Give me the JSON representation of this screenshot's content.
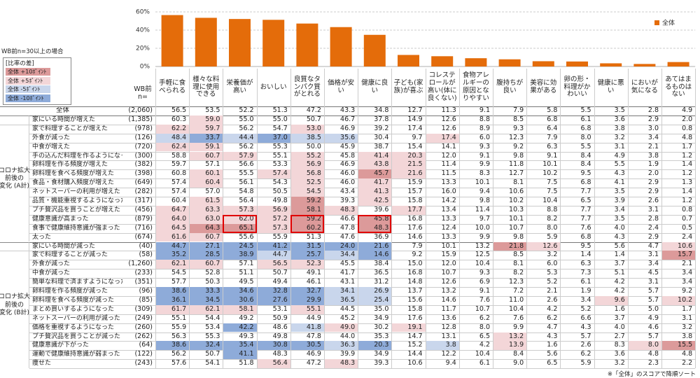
{
  "chart_data": {
    "type": "bar",
    "categories": [
      "手軽に食べられる",
      "様々な料理に使用できる",
      "栄養価が高い",
      "おいしい",
      "良質なタンパク質がとれる",
      "価格が安い",
      "健康に良い",
      "子ども(家族)が喜ぶ",
      "コレステロールが高い(体に良くない)",
      "食物アレルギーの原因となりやすい",
      "腹持ちが良い",
      "美容に効果がある",
      "卵の形・料理がかわいい",
      "健康に悪い",
      "においが気になる",
      "あてはまるものはない"
    ],
    "series": [
      {
        "name": "全体",
        "color": "#e46c0a",
        "values": [
          56.5,
          53.5,
          52.2,
          51.3,
          47.2,
          43.3,
          34.8,
          12.7,
          11.3,
          9.1,
          7.9,
          5.8,
          5.5,
          3.5,
          2.8,
          4.9
        ]
      }
    ],
    "ylim": [
      0,
      60
    ],
    "yticks": [
      {
        "value": 0,
        "label": "0%"
      },
      {
        "value": 20,
        "label": "20%"
      },
      {
        "value": 40,
        "label": "40%"
      },
      {
        "value": 60,
        "label": "60%"
      }
    ],
    "grid": true,
    "legend": "top-right"
  },
  "note": "WB前n=30以上の場合",
  "legend_box": {
    "title": "[比率の差]",
    "items": [
      {
        "label": "全体 +10ﾎﾟｲﾝﾄ",
        "color": "#dc9a9a"
      },
      {
        "label": "全体 +5ﾎﾟｲﾝﾄ",
        "color": "#f3d6d8"
      },
      {
        "label": "全体 -5ﾎﾟｲﾝﾄ",
        "color": "#c9d6ec"
      },
      {
        "label": "全体 -10ﾎﾟｲﾝﾄ",
        "color": "#8eabd9"
      }
    ]
  },
  "table": {
    "n_header": "WB前 n=",
    "total_n": "(2,060)",
    "groups": [
      {
        "label": "コロナ拡大 前後の 変化 (A計)",
        "rows": [
          {
            "label": "家にいる時間が増えた",
            "n": "(1,385)",
            "values": [
              "60.3",
              "59.0",
              "55.0",
              "55.0",
              "50.7",
              "46.7",
              "37.8",
              "14.9",
              "12.6",
              "8.8",
              "8.5",
              "6.8",
              "6.1",
              "3.6",
              "2.9",
              "2.0"
            ]
          },
          {
            "label": "家で料理することが増えた",
            "n": "(978)",
            "values": [
              "62.2",
              "59.7",
              "56.2",
              "54.7",
              "53.0",
              "46.9",
              "39.2",
              "17.4",
              "12.6",
              "8.9",
              "9.3",
              "6.4",
              "6.8",
              "3.8",
              "3.0",
              "0.8"
            ]
          },
          {
            "label": "外食が減った",
            "n": "(126)",
            "values": [
              "48.4",
              "33.7",
              "44.4",
              "37.0",
              "38.5",
              "35.6",
              "30.4",
              "9.7",
              "17.4",
              "6.0",
              "12.3",
              "7.9",
              "8.0",
              "3.2",
              "3.4",
              "4.8"
            ]
          },
          {
            "label": "中食が増えた",
            "n": "(720)",
            "values": [
              "62.4",
              "59.1",
              "56.2",
              "55.3",
              "50.0",
              "45.9",
              "38.7",
              "15.4",
              "14.1",
              "9.3",
              "9.2",
              "6.3",
              "5.5",
              "3.1",
              "2.1",
              "1.7"
            ]
          },
          {
            "label": "手の込んだ料理を作るようになった",
            "n": "(300)",
            "values": [
              "58.8",
              "60.7",
              "57.9",
              "55.1",
              "55.2",
              "45.8",
              "41.4",
              "20.3",
              "12.0",
              "9.1",
              "9.8",
              "9.1",
              "8.4",
              "4.9",
              "3.8",
              "1.2"
            ]
          },
          {
            "label": "卵料理を作る頻度が増えた",
            "n": "(382)",
            "values": [
              "59.7",
              "57.1",
              "56.6",
              "53.3",
              "56.9",
              "46.9",
              "43.8",
              "21.5",
              "11.4",
              "9.9",
              "11.8",
              "10.1",
              "8.4",
              "5.5",
              "1.9",
              "1.4"
            ]
          },
          {
            "label": "卵料理を食べる頻度が増えた",
            "n": "(398)",
            "values": [
              "60.8",
              "60.1",
              "55.5",
              "57.4",
              "56.8",
              "46.0",
              "45.7",
              "21.6",
              "11.5",
              "8.3",
              "12.7",
              "10.2",
              "9.5",
              "4.3",
              "2.0",
              "1.2"
            ]
          },
          {
            "label": "食品・食材購入頻度が増えた",
            "n": "(649)",
            "values": [
              "57.4",
              "60.4",
              "56.1",
              "54.3",
              "52.5",
              "46.0",
              "41.7",
              "15.9",
              "13.3",
              "10.1",
              "8.1",
              "7.5",
              "6.8",
              "4.1",
              "2.9",
              "1.3"
            ]
          },
          {
            "label": "ネットスーパーの利用が増えた",
            "n": "(282)",
            "values": [
              "57.4",
              "57.0",
              "54.8",
              "50.5",
              "54.5",
              "43.4",
              "41.3",
              "15.7",
              "16.0",
              "9.4",
              "10.6",
              "7.5",
              "7.7",
              "3.5",
              "2.9",
              "1.4"
            ]
          },
          {
            "label": "品質・機能重視するようになった",
            "n": "(317)",
            "values": [
              "60.4",
              "61.5",
              "56.4",
              "49.8",
              "59.2",
              "39.3",
              "42.5",
              "15.8",
              "14.2",
              "9.8",
              "10.2",
              "10.4",
              "6.5",
              "3.9",
              "2.6",
              "1.2"
            ]
          },
          {
            "label": "プチ贅沢品を買うことが増えた",
            "n": "(456)",
            "values": [
              "64.7",
              "63.3",
              "57.3",
              "56.9",
              "58.1",
              "48.3",
              "39.6",
              "17.7",
              "13.4",
              "11.4",
              "10.3",
              "8.8",
              "7.7",
              "3.4",
              "3.1",
              "0.8"
            ]
          },
          {
            "label": "健康意識が高まった",
            "n": "(879)",
            "values": [
              "64.0",
              "63.0",
              "62.0",
              "57.2",
              "59.2",
              "46.6",
              "45.8",
              "16.8",
              "13.3",
              "9.7",
              "10.1",
              "8.2",
              "7.7",
              "3.5",
              "2.8",
              "0.7"
            ]
          },
          {
            "label": "食事で健康維持意識が強まった",
            "n": "(716)",
            "values": [
              "64.5",
              "64.3",
              "65.1",
              "57.3",
              "60.2",
              "47.8",
              "48.3",
              "17.6",
              "12.4",
              "10.0",
              "10.7",
              "8.0",
              "7.6",
              "4.0",
              "2.4",
              "0.5"
            ]
          },
          {
            "label": "太った",
            "n": "(674)",
            "values": [
              "61.6",
              "60.7",
              "55.6",
              "55.9",
              "51.3",
              "47.6",
              "36.9",
              "14.6",
              "13.3",
              "9.9",
              "9.8",
              "5.9",
              "6.8",
              "4.3",
              "2.9",
              "2.4"
            ]
          }
        ]
      },
      {
        "label": "コロナ拡大 前後の 変化 (B計)",
        "rows": [
          {
            "label": "家にいる時間が減った",
            "n": "(40)",
            "values": [
              "44.7",
              "27.1",
              "24.5",
              "41.2",
              "31.5",
              "24.0",
              "21.6",
              "7.9",
              "10.1",
              "13.2",
              "21.8",
              "12.6",
              "9.5",
              "5.6",
              "4.7",
              "10.6"
            ]
          },
          {
            "label": "家で料理することが減った",
            "n": "(58)",
            "values": [
              "35.2",
              "28.5",
              "38.9",
              "44.7",
              "25.7",
              "34.4",
              "14.6",
              "9.2",
              "15.9",
              "12.5",
              "8.5",
              "3.2",
              "1.4",
              "1.4",
              "3.1",
              "15.7"
            ]
          },
          {
            "label": "外食が減った",
            "n": "(1,260)",
            "values": [
              "62.1",
              "60.7",
              "57.1",
              "56.5",
              "52.3",
              "45.5",
              "38.4",
              "15.0",
              "12.0",
              "10.4",
              "8.1",
              "6.0",
              "6.3",
              "3.7",
              "3.4",
              "2.1"
            ]
          },
          {
            "label": "中食が減った",
            "n": "(233)",
            "values": [
              "54.5",
              "52.8",
              "51.1",
              "50.7",
              "49.1",
              "41.7",
              "36.5",
              "16.8",
              "10.7",
              "9.3",
              "8.2",
              "5.3",
              "7.3",
              "5.1",
              "4.5",
              "3.4"
            ]
          },
          {
            "label": "簡単な料理で済ますようになった",
            "n": "(351)",
            "values": [
              "57.7",
              "50.3",
              "49.5",
              "49.4",
              "46.1",
              "43.1",
              "31.2",
              "14.8",
              "12.6",
              "6.9",
              "12.3",
              "5.2",
              "6.1",
              "4.2",
              "3.1",
              "3.4"
            ]
          },
          {
            "label": "卵料理を作る頻度が減った",
            "n": "(96)",
            "values": [
              "38.6",
              "33.3",
              "34.6",
              "32.8",
              "32.7",
              "34.1",
              "26.9",
              "13.7",
              "13.2",
              "9.1",
              "7.2",
              "2.1",
              "1.9",
              "4.2",
              "5.7",
              "9.2"
            ]
          },
          {
            "label": "卵料理を食べる頻度が減った",
            "n": "(85)",
            "values": [
              "36.1",
              "34.5",
              "30.6",
              "27.6",
              "29.9",
              "36.5",
              "25.4",
              "15.6",
              "14.6",
              "7.6",
              "11.0",
              "2.6",
              "3.4",
              "9.6",
              "5.7",
              "10.2"
            ]
          },
          {
            "label": "まとめ買いするようになった",
            "n": "(309)",
            "values": [
              "61.7",
              "62.1",
              "58.1",
              "53.1",
              "55.1",
              "44.5",
              "35.0",
              "15.8",
              "11.7",
              "10.7",
              "10.4",
              "4.2",
              "5.2",
              "1.6",
              "5.0",
              "1.7"
            ]
          },
          {
            "label": "ネットスーパーの利用が減った",
            "n": "(249)",
            "values": [
              "55.1",
              "54.4",
              "49.2",
              "50.9",
              "44.9",
              "45.2",
              "34.9",
              "17.6",
              "13.6",
              "6.2",
              "7.6",
              "6.2",
              "6.6",
              "3.7",
              "4.9",
              "3.1"
            ]
          },
          {
            "label": "価格を重視するようになった",
            "n": "(260)",
            "values": [
              "55.9",
              "53.4",
              "42.2",
              "48.6",
              "41.8",
              "49.0",
              "30.2",
              "19.1",
              "12.8",
              "8.0",
              "9.9",
              "4.7",
              "4.3",
              "4.0",
              "4.6",
              "3.2"
            ]
          },
          {
            "label": "プチ贅沢品を買うことが減った",
            "n": "(262)",
            "values": [
              "56.3",
              "55.3",
              "49.3",
              "49.8",
              "47.8",
              "44.0",
              "35.3",
              "14.7",
              "13.1",
              "6.5",
              "13.2",
              "4.3",
              "5.7",
              "2.7",
              "5.7",
              "3.8"
            ]
          },
          {
            "label": "健康意識が下がった",
            "n": "(64)",
            "values": [
              "38.6",
              "32.4",
              "35.4",
              "30.8",
              "30.5",
              "36.3",
              "20.3",
              "15.2",
              "3.8",
              "4.2",
              "13.9",
              "1.6",
              "2.6",
              "8.3",
              "8.0",
              "15.5"
            ]
          },
          {
            "label": "運動で健康維持意識が弱まった",
            "n": "(122)",
            "values": [
              "56.2",
              "50.7",
              "41.1",
              "48.3",
              "46.9",
              "39.9",
              "34.9",
              "14.4",
              "12.2",
              "10.4",
              "8.4",
              "5.6",
              "6.2",
              "3.6",
              "4.8",
              "4.8"
            ]
          },
          {
            "label": "痩せた",
            "n": "(243)",
            "values": [
              "57.6",
              "54.1",
              "51.8",
              "56.4",
              "47.2",
              "48.3",
              "39.3",
              "10.6",
              "9.4",
              "6.1",
              "9.0",
              "6.5",
              "5.9",
              "3.2",
              "2.3",
              "2.2"
            ]
          }
        ]
      }
    ]
  },
  "footer": "※「全体」のスコアで降順ソート"
}
